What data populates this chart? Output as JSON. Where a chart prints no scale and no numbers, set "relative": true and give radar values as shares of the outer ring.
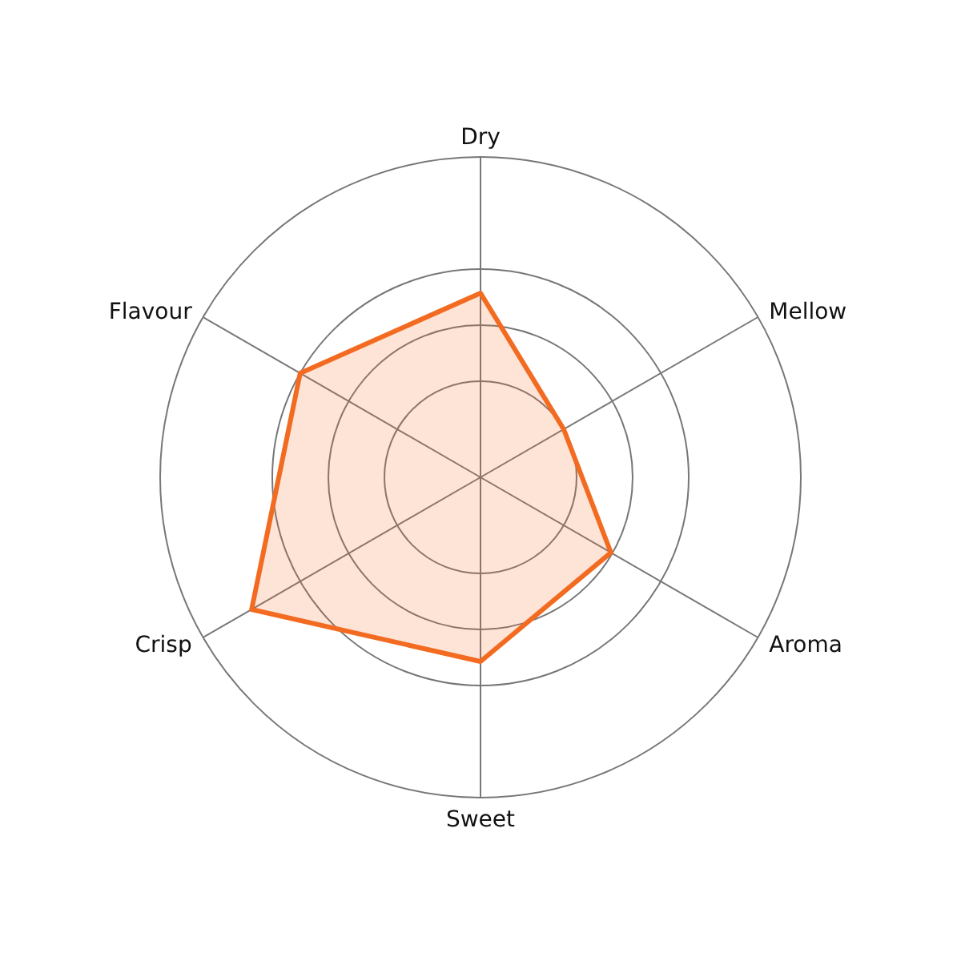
{
  "chart_data": {
    "type": "radar",
    "categories": [
      "Dry",
      "Mellow",
      "Aroma",
      "Sweet",
      "Crisp",
      "Flavour"
    ],
    "series": [
      {
        "color": "#f26b21",
        "values": [
          0.575,
          0.3,
          0.47,
          0.575,
          0.825,
          0.65
        ]
      }
    ],
    "relative": true,
    "grid": true
  }
}
